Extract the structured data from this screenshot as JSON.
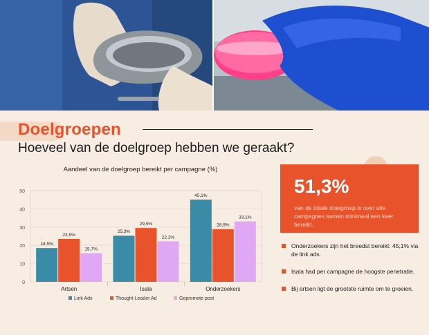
{
  "header": {
    "title": "Doelgroepen",
    "subtitle": "Hoeveel van de doelgroep hebben we geraakt?"
  },
  "colors": {
    "accent": "#e8532c",
    "link_ads": "#3a8ba5",
    "thought_leader_ad": "#e8532c",
    "gepromote_post": "#e0a7f5",
    "background": "#f7ede3"
  },
  "highlight": {
    "value": "51,3%",
    "description": "van de totale doelgroep is over alle campagnes samen minimaal een keer bereikt."
  },
  "bullets": [
    "Onderzoekers zijn het breedst bereikt: 45,1% via de link ads.",
    "Isala had per campagne de hoogste penetratie.",
    "Bij artsen ligt de grootste ruimte om te groeien."
  ],
  "chart_data": {
    "type": "bar",
    "title": "Aandeel van de doelgroep bereikt per campagne (%)",
    "categories": [
      "Artsen",
      "Isala",
      "Onderzoekers"
    ],
    "series": [
      {
        "name": "Link Ads",
        "color": "#3a8ba5",
        "values": [
          18.5,
          25.3,
          45.1
        ],
        "labels": [
          "18,5%",
          "25,3%",
          "45,1%"
        ]
      },
      {
        "name": "Thought Leader Ad",
        "color": "#e8532c",
        "values": [
          23.5,
          29.5,
          28.9
        ],
        "labels": [
          "23,5%",
          "29,5%",
          "28,9%"
        ]
      },
      {
        "name": "Gepromote post",
        "color": "#e0a7f5",
        "values": [
          15.7,
          22.2,
          33.1
        ],
        "labels": [
          "15,7%",
          "22,2%",
          "33,1%"
        ]
      }
    ],
    "yticks": [
      "0",
      "10",
      "20",
      "30",
      "40",
      "50"
    ],
    "ylim": [
      0,
      50
    ],
    "legend": "bottom",
    "grid": true
  }
}
